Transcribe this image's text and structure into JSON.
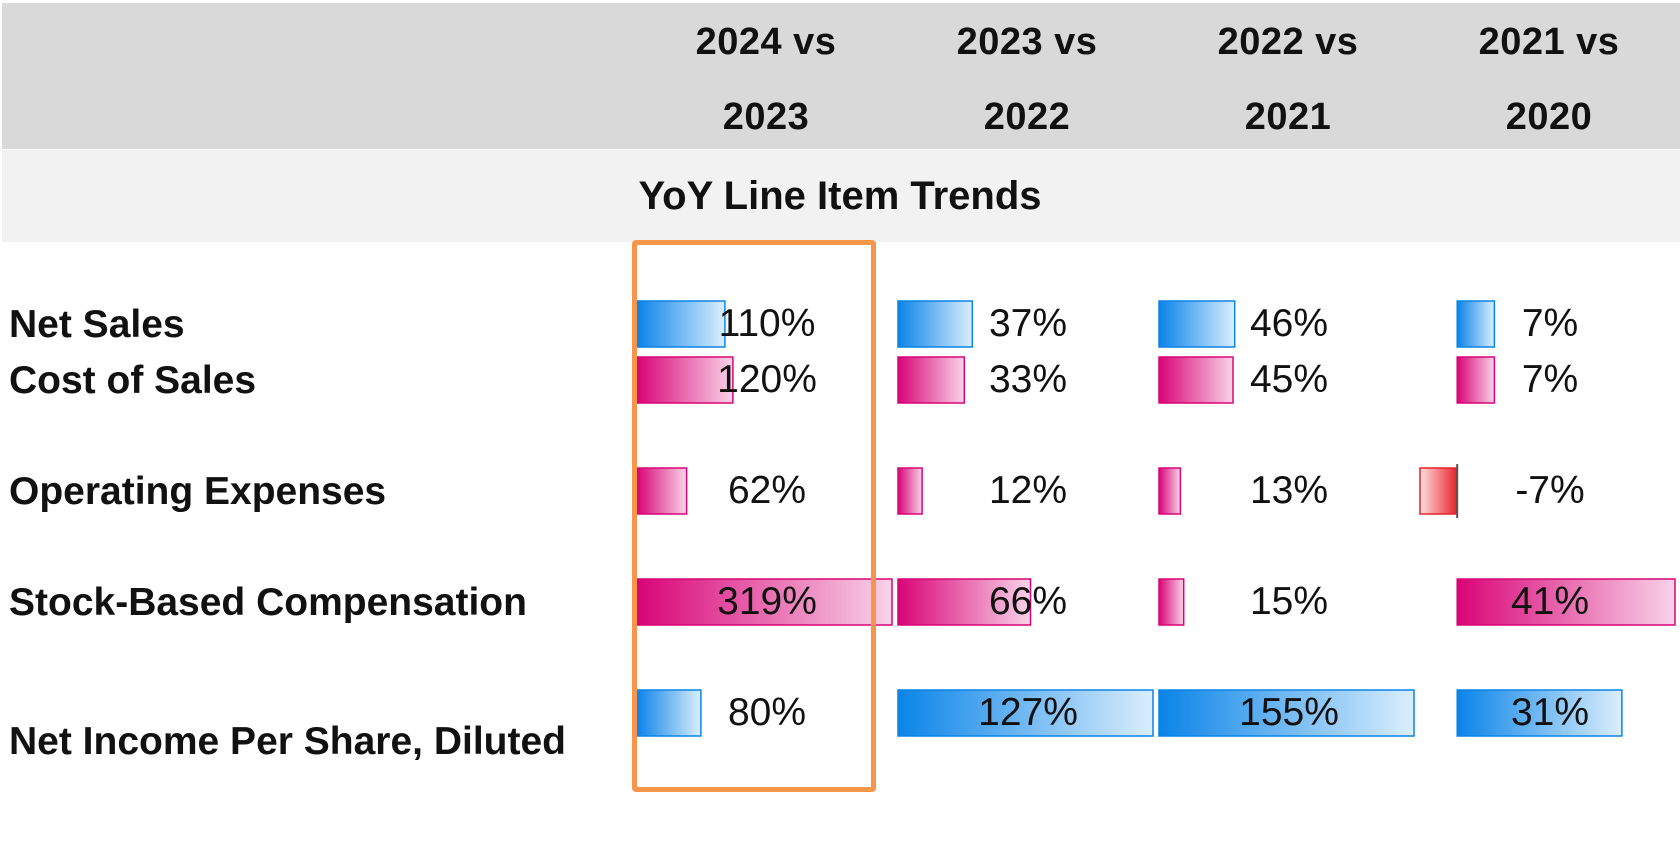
{
  "chart_data": {
    "type": "bar",
    "title": "YoY Line Item Trends",
    "columns": [
      "2024 vs 2023",
      "2023 vs 2022",
      "2022 vs 2021",
      "2021 vs 2020"
    ],
    "rows": [
      {
        "label": "Net Sales",
        "kind": "revenue",
        "values": [
          110,
          37,
          46,
          7
        ],
        "display": [
          "110%",
          "37%",
          "46%",
          "7%"
        ]
      },
      {
        "label": "Cost of Sales",
        "kind": "expense",
        "values": [
          120,
          33,
          45,
          7
        ],
        "display": [
          "120%",
          "33%",
          "45%",
          "7%"
        ]
      },
      {
        "label": "Operating Expenses",
        "kind": "expense",
        "values": [
          62,
          12,
          13,
          -7
        ],
        "display": [
          "62%",
          "12%",
          "13%",
          "-7%"
        ]
      },
      {
        "label": "Stock-Based Compensation",
        "kind": "expense",
        "values": [
          319,
          66,
          15,
          41
        ],
        "display": [
          "319%",
          "66%",
          "15%",
          "41%"
        ]
      },
      {
        "label": "Net Income Per Share, Diluted",
        "kind": "revenue",
        "values": [
          80,
          127,
          155,
          31
        ],
        "display": [
          "80%",
          "127%",
          "155%",
          "31%"
        ]
      }
    ],
    "highlighted_column": "2024 vs 2023",
    "colors": {
      "positive_good": "#0a84e8",
      "positive_cost": "#d90477",
      "negative": "#e8202a",
      "highlight": "#f7954a",
      "header_band": "#d9d9d9",
      "title_band": "#f2f2f2"
    }
  }
}
